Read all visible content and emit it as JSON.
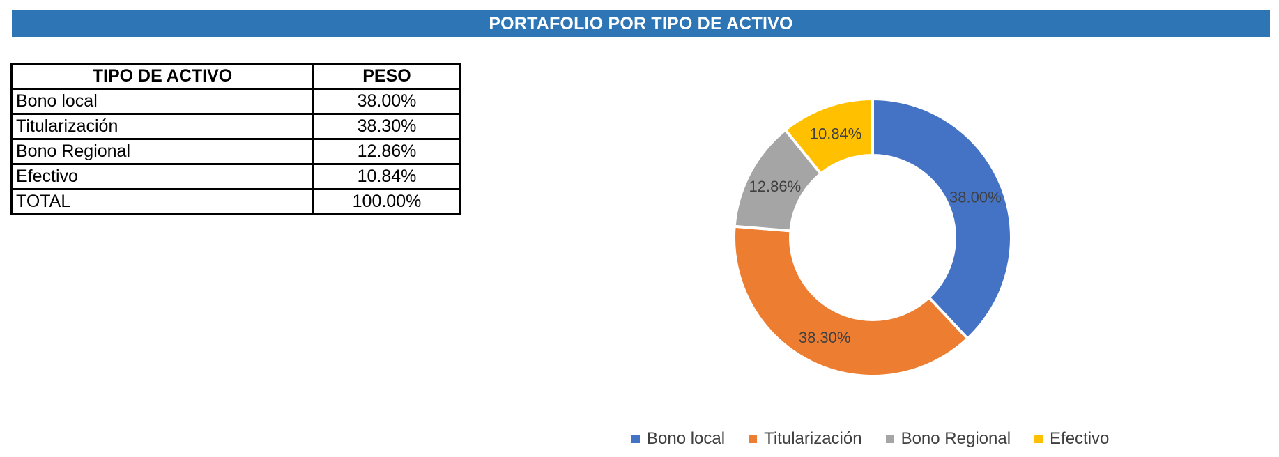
{
  "title": "PORTAFOLIO POR TIPO DE ACTIVO",
  "table": {
    "headers": [
      "TIPO DE ACTIVO",
      "PESO"
    ],
    "rows": [
      {
        "name": "Bono local",
        "weight": "38.00%"
      },
      {
        "name": "Titularización",
        "weight": "38.30%"
      },
      {
        "name": "Bono Regional",
        "weight": "12.86%"
      },
      {
        "name": "Efectivo",
        "weight": "10.84%"
      },
      {
        "name": "TOTAL",
        "weight": "100.00%"
      }
    ]
  },
  "chart_data": {
    "type": "pie",
    "variant": "doughnut",
    "title": "",
    "categories": [
      "Bono local",
      "Titularización",
      "Bono Regional",
      "Efectivo"
    ],
    "values": [
      38.0,
      38.3,
      12.86,
      10.84
    ],
    "labels": [
      "38.00%",
      "38.30%",
      "12.86%",
      "10.84%"
    ],
    "colors": [
      "#4472C4",
      "#ED7D31",
      "#A5A5A5",
      "#FFC000"
    ],
    "legend": "bottom"
  },
  "legend": [
    "Bono local",
    "Titularización",
    "Bono Regional",
    "Efectivo"
  ]
}
